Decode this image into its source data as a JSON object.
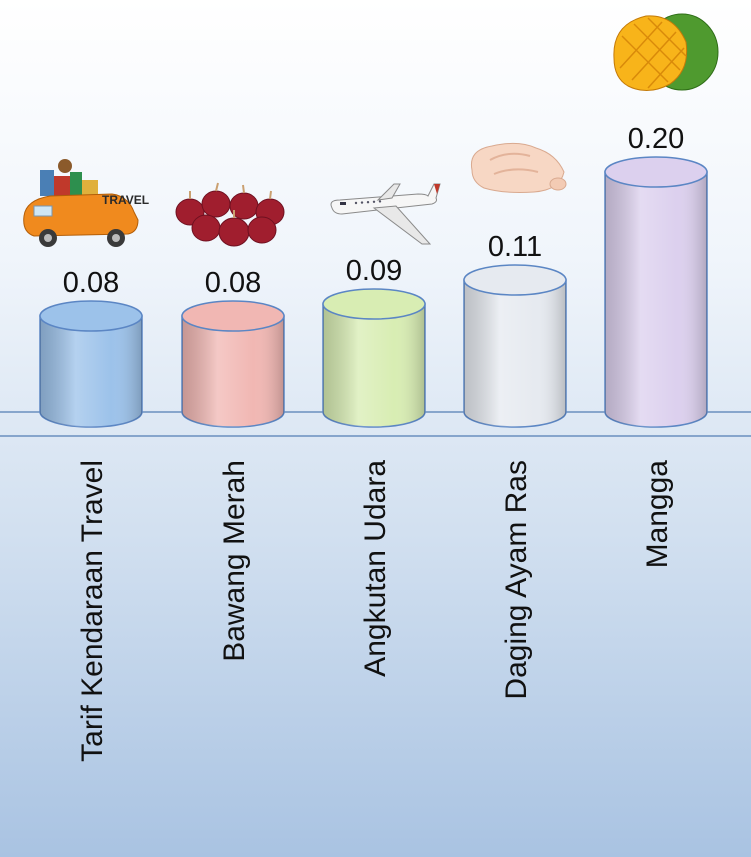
{
  "chart_data": {
    "type": "bar",
    "title": "",
    "xlabel": "",
    "ylabel": "",
    "categories": [
      "Tarif Kendaraan Travel",
      "Bawang Merah",
      "Angkutan Udara",
      "Daging Ayam Ras",
      "Mangga"
    ],
    "values": [
      0.08,
      0.08,
      0.09,
      0.11,
      0.2
    ],
    "value_labels": [
      "0.08",
      "0.08",
      "0.09",
      "0.11",
      "0.20"
    ],
    "bar_colors": [
      "#9cc2ea",
      "#f1b7b3",
      "#d8edb3",
      "#e6eaf0",
      "#dcd0ee"
    ],
    "bar_shape": "cylinder",
    "category_icons": [
      "travel-car-icon",
      "red-onion-icon",
      "airplane-icon",
      "raw-chicken-icon",
      "mango-icon"
    ],
    "icon_text": "TRAVEL",
    "grid": false,
    "legend": "none"
  }
}
